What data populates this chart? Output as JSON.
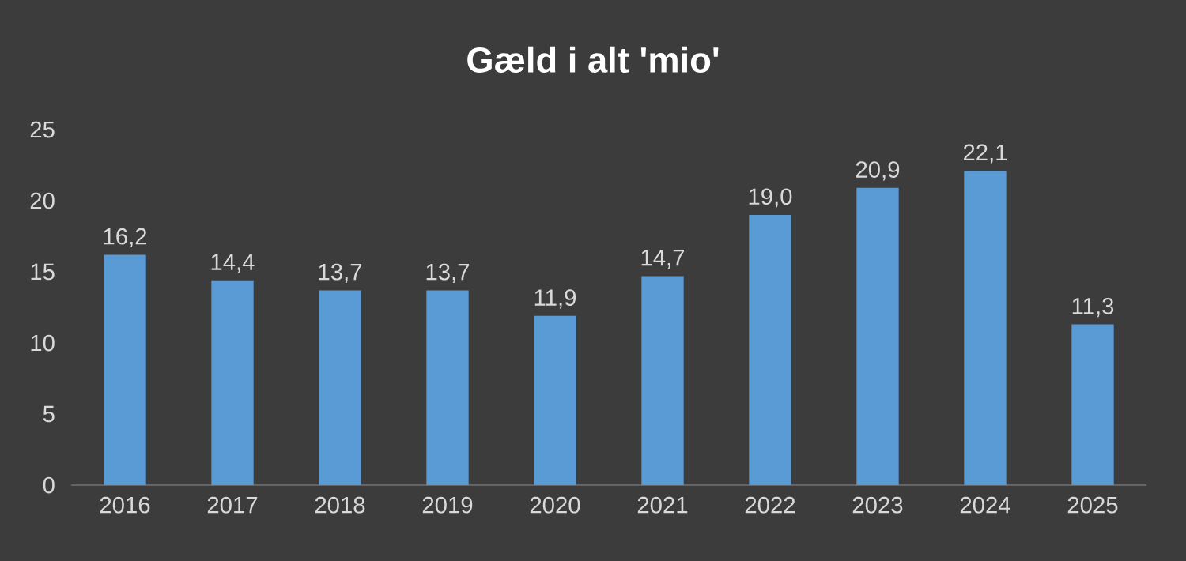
{
  "chart_data": {
    "type": "bar",
    "title": "Gæld i alt 'mio'",
    "categories": [
      "2016",
      "2017",
      "2018",
      "2019",
      "2020",
      "2021",
      "2022",
      "2023",
      "2024",
      "2025"
    ],
    "values": [
      16.2,
      14.4,
      13.7,
      13.7,
      11.9,
      14.7,
      19.0,
      20.9,
      22.1,
      11.3
    ],
    "value_labels": [
      "16,2",
      "14,4",
      "13,7",
      "13,7",
      "11,9",
      "14,7",
      "19,0",
      "20,9",
      "22,1",
      "11,3"
    ],
    "color": "#5b9bd5",
    "ylim": [
      0,
      25
    ],
    "yticks": [
      0,
      5,
      10,
      15,
      20,
      25
    ]
  }
}
